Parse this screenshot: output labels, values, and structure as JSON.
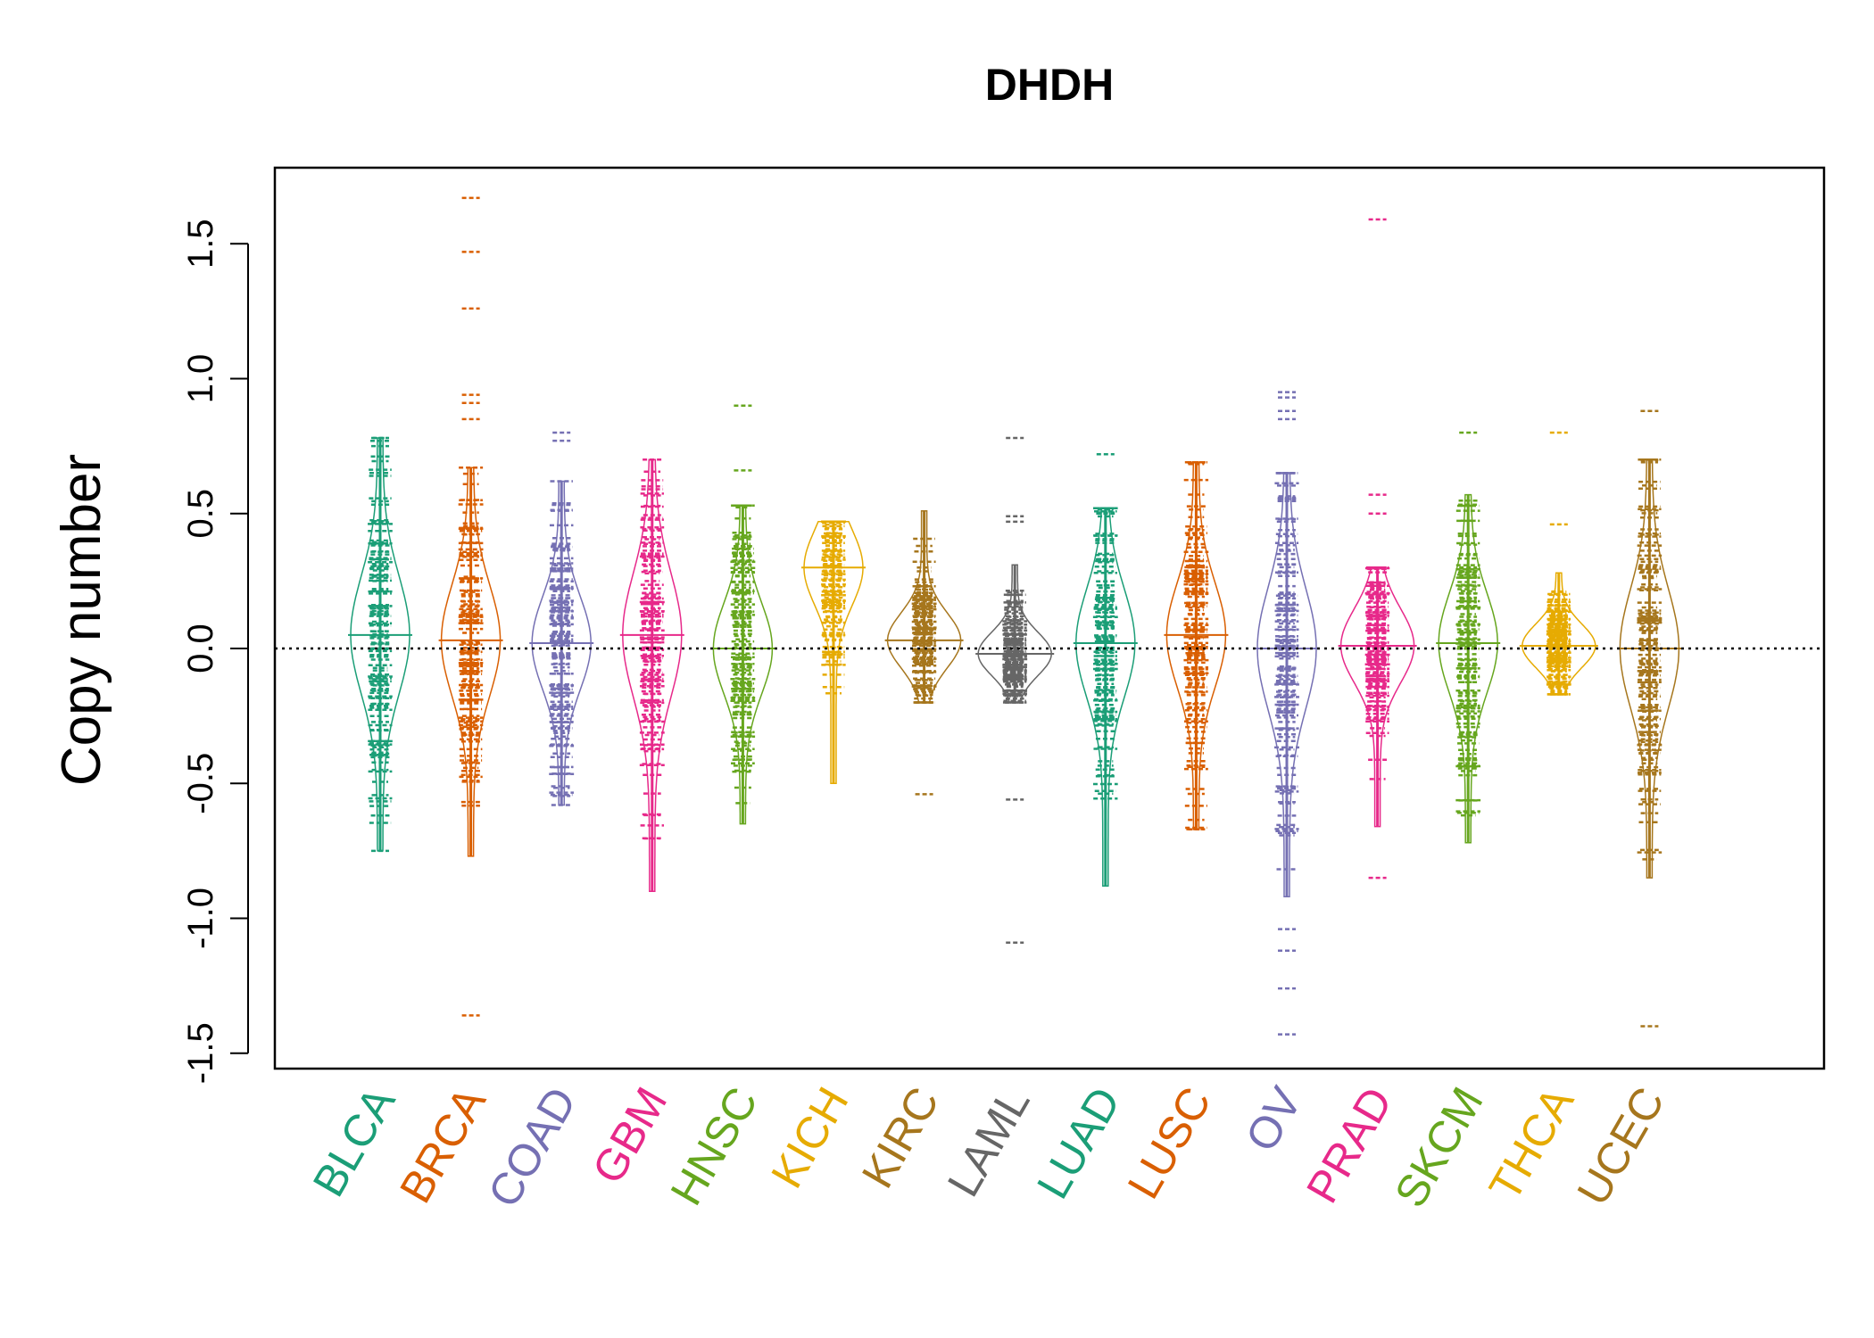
{
  "chart_data": {
    "type": "beanplot",
    "title": "DHDH",
    "xlabel": "",
    "ylabel": "Copy number",
    "ylim": [
      -1.55,
      1.8
    ],
    "yticks": [
      -1.5,
      -1.0,
      -0.5,
      0.0,
      0.5,
      1.0,
      1.5
    ],
    "ytick_labels": [
      "-1.5",
      "-1.0",
      "-0.5",
      "0.0",
      "0.5",
      "1.0",
      "1.5"
    ],
    "reference_line": 0.0,
    "categories": [
      "BLCA",
      "BRCA",
      "COAD",
      "GBM",
      "HNSC",
      "KICH",
      "KIRC",
      "LAML",
      "LUAD",
      "LUSC",
      "OV",
      "PRAD",
      "SKCM",
      "THCA",
      "UCEC"
    ],
    "colors": [
      "#1b9e77",
      "#d95f02",
      "#7570b3",
      "#e7298a",
      "#66a61e",
      "#e6ab02",
      "#a6761d",
      "#666666",
      "#1b9e77",
      "#d95f02",
      "#7570b3",
      "#e7298a",
      "#66a61e",
      "#e6ab02",
      "#a6761d"
    ],
    "series": [
      {
        "name": "BLCA",
        "min": -0.75,
        "max": 0.78,
        "center": 0.05,
        "outliers": [
          -0.75,
          0.78,
          0.75
        ]
      },
      {
        "name": "BRCA",
        "min": -0.77,
        "max": 0.67,
        "center": 0.03,
        "outliers": [
          1.67,
          1.47,
          1.26,
          0.94,
          0.91,
          0.85,
          -1.36
        ]
      },
      {
        "name": "COAD",
        "min": -0.58,
        "max": 0.62,
        "center": 0.02,
        "outliers": [
          0.8,
          0.77
        ]
      },
      {
        "name": "GBM",
        "min": -0.9,
        "max": 0.7,
        "center": 0.05,
        "outliers": []
      },
      {
        "name": "HNSC",
        "min": -0.65,
        "max": 0.53,
        "center": 0.0,
        "outliers": [
          0.9,
          0.66
        ]
      },
      {
        "name": "KICH",
        "min": -0.5,
        "max": 0.47,
        "center": 0.3,
        "outliers": []
      },
      {
        "name": "KIRC",
        "min": -0.2,
        "max": 0.51,
        "center": 0.03,
        "outliers": [
          -0.54
        ]
      },
      {
        "name": "LAML",
        "min": -0.2,
        "max": 0.31,
        "center": -0.02,
        "outliers": [
          0.78,
          0.49,
          0.47,
          -0.56,
          -1.09
        ]
      },
      {
        "name": "LUAD",
        "min": -0.88,
        "max": 0.52,
        "center": 0.02,
        "outliers": [
          0.72
        ]
      },
      {
        "name": "LUSC",
        "min": -0.67,
        "max": 0.69,
        "center": 0.05,
        "outliers": []
      },
      {
        "name": "OV",
        "min": -0.92,
        "max": 0.65,
        "center": 0.0,
        "outliers": [
          0.95,
          0.93,
          0.88,
          0.85,
          -1.04,
          -1.12,
          -1.26,
          -1.43
        ]
      },
      {
        "name": "PRAD",
        "min": -0.66,
        "max": 0.3,
        "center": 0.01,
        "outliers": [
          1.59,
          0.57,
          0.5,
          -0.85
        ]
      },
      {
        "name": "SKCM",
        "min": -0.72,
        "max": 0.57,
        "center": 0.02,
        "outliers": [
          0.8
        ]
      },
      {
        "name": "THCA",
        "min": -0.17,
        "max": 0.28,
        "center": 0.01,
        "outliers": [
          0.8,
          0.46
        ]
      },
      {
        "name": "UCEC",
        "min": -0.85,
        "max": 0.7,
        "center": 0.0,
        "outliers": [
          0.88,
          -1.4
        ]
      }
    ]
  }
}
